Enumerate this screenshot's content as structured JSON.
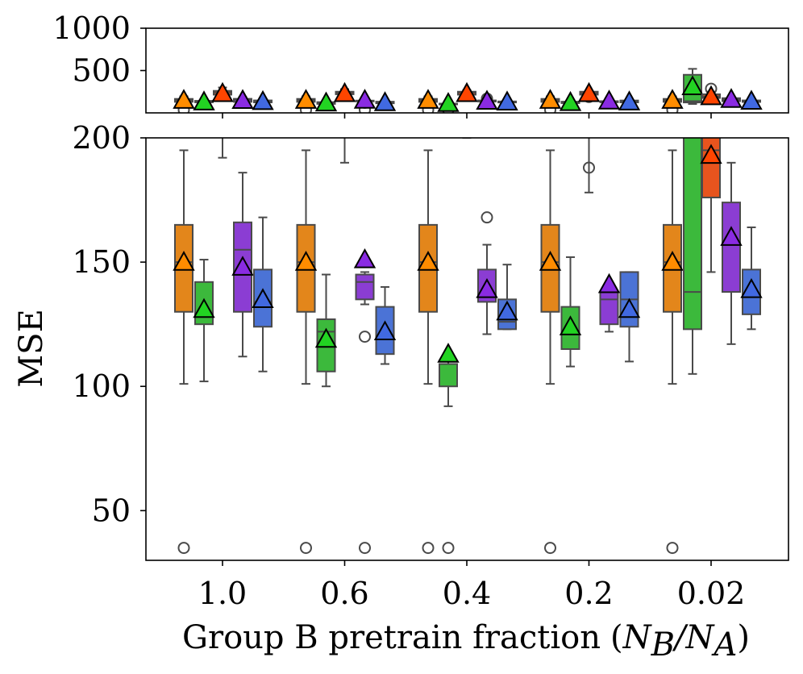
{
  "chart_data": {
    "type": "box",
    "xlabel": "Group B pretrain fraction",
    "xlabel_math": "(N_B/N_A)",
    "ylabel": "MSE",
    "categories": [
      "1.0",
      "0.6",
      "0.4",
      "0.2",
      "0.02"
    ],
    "series": [
      {
        "name": "orange",
        "color": "#e3861b",
        "marker_color": "#ff8c00"
      },
      {
        "name": "green",
        "color": "#3cb93c",
        "marker_color": "#22d322"
      },
      {
        "name": "red",
        "color": "#e7541e",
        "marker_color": "#ff4500"
      },
      {
        "name": "purple",
        "color": "#8b3dd3",
        "marker_color": "#8a2be2"
      },
      {
        "name": "blue",
        "color": "#4b73d6",
        "marker_color": "#4169e1"
      }
    ],
    "panels": {
      "top": {
        "ylim": [
          0,
          1000
        ],
        "yticks": [
          500,
          1000
        ]
      },
      "bottom": {
        "ylim": [
          30,
          200
        ],
        "yticks": [
          50,
          100,
          150,
          200
        ]
      }
    },
    "boxes": [
      {
        "cat": 0,
        "s": 0,
        "wlo": 101,
        "q1": 130,
        "med": 150,
        "q3": 165,
        "whi": 195,
        "mean": 150,
        "fl": [
          35
        ]
      },
      {
        "cat": 0,
        "s": 1,
        "wlo": 102,
        "q1": 125,
        "med": 129,
        "q3": 142,
        "whi": 151,
        "mean": 131,
        "fl": []
      },
      {
        "cat": 0,
        "s": 2,
        "wlo": 192,
        "q1": 215,
        "med": 240,
        "q3": 260,
        "whi": 300,
        "mean": 230,
        "fl": []
      },
      {
        "cat": 0,
        "s": 3,
        "wlo": 112,
        "q1": 130,
        "med": 155,
        "q3": 166,
        "whi": 186,
        "mean": 148,
        "fl": []
      },
      {
        "cat": 0,
        "s": 4,
        "wlo": 106,
        "q1": 124,
        "med": 134,
        "q3": 147,
        "whi": 168,
        "mean": 135,
        "fl": []
      },
      {
        "cat": 1,
        "s": 0,
        "wlo": 101,
        "q1": 130,
        "med": 150,
        "q3": 165,
        "whi": 195,
        "mean": 150,
        "fl": [
          35
        ]
      },
      {
        "cat": 1,
        "s": 1,
        "wlo": 100,
        "q1": 106,
        "med": 122,
        "q3": 127,
        "whi": 145,
        "mean": 119,
        "fl": []
      },
      {
        "cat": 1,
        "s": 2,
        "wlo": 190,
        "q1": 220,
        "med": 240,
        "q3": 250,
        "whi": 280,
        "mean": 230,
        "fl": []
      },
      {
        "cat": 1,
        "s": 3,
        "wlo": 133,
        "q1": 135,
        "med": 142,
        "q3": 145,
        "whi": 146,
        "mean": 151,
        "fl": [
          120,
          35
        ]
      },
      {
        "cat": 1,
        "s": 4,
        "wlo": 109,
        "q1": 113,
        "med": 120,
        "q3": 132,
        "whi": 140,
        "mean": 122,
        "fl": []
      },
      {
        "cat": 2,
        "s": 0,
        "wlo": 101,
        "q1": 130,
        "med": 150,
        "q3": 165,
        "whi": 195,
        "mean": 150,
        "fl": [
          35
        ]
      },
      {
        "cat": 2,
        "s": 1,
        "wlo": 92,
        "q1": 100,
        "med": 109,
        "q3": 109,
        "whi": 111,
        "mean": 113,
        "fl": [
          35
        ]
      },
      {
        "cat": 2,
        "s": 2,
        "wlo": 200,
        "q1": 215,
        "med": 240,
        "q3": 250,
        "whi": 270,
        "mean": 230,
        "fl": []
      },
      {
        "cat": 2,
        "s": 3,
        "wlo": 121,
        "q1": 134,
        "med": 137,
        "q3": 147,
        "whi": 157,
        "mean": 139,
        "fl": [
          168
        ]
      },
      {
        "cat": 2,
        "s": 4,
        "wlo": 123,
        "q1": 123,
        "med": 126,
        "q3": 135,
        "whi": 149,
        "mean": 130,
        "fl": []
      },
      {
        "cat": 3,
        "s": 0,
        "wlo": 101,
        "q1": 130,
        "med": 150,
        "q3": 165,
        "whi": 195,
        "mean": 150,
        "fl": [
          35
        ]
      },
      {
        "cat": 3,
        "s": 1,
        "wlo": 108,
        "q1": 115,
        "med": 122,
        "q3": 132,
        "whi": 152,
        "mean": 124,
        "fl": []
      },
      {
        "cat": 3,
        "s": 2,
        "wlo": 178,
        "q1": 215,
        "med": 230,
        "q3": 250,
        "whi": 260,
        "mean": 230,
        "fl": [
          188
        ]
      },
      {
        "cat": 3,
        "s": 3,
        "wlo": 122,
        "q1": 125,
        "med": 135,
        "q3": 138,
        "whi": 141,
        "mean": 141,
        "fl": []
      },
      {
        "cat": 3,
        "s": 4,
        "wlo": 110,
        "q1": 124,
        "med": 135,
        "q3": 146,
        "whi": 146,
        "mean": 131,
        "fl": []
      },
      {
        "cat": 4,
        "s": 0,
        "wlo": 101,
        "q1": 130,
        "med": 150,
        "q3": 165,
        "whi": 195,
        "mean": 150,
        "fl": [
          35
        ]
      },
      {
        "cat": 4,
        "s": 1,
        "wlo": 105,
        "q1": 123,
        "med": 138,
        "q3": 450,
        "whi": 520,
        "mean": 310,
        "fl": []
      },
      {
        "cat": 4,
        "s": 2,
        "wlo": 146,
        "q1": 176,
        "med": 195,
        "q3": 220,
        "whi": 250,
        "mean": 193,
        "fl": [
          285
        ]
      },
      {
        "cat": 4,
        "s": 3,
        "wlo": 117,
        "q1": 138,
        "med": 157,
        "q3": 174,
        "whi": 190,
        "mean": 160,
        "fl": []
      },
      {
        "cat": 4,
        "s": 4,
        "wlo": 123,
        "q1": 129,
        "med": 137,
        "q3": 147,
        "whi": 164,
        "mean": 139,
        "fl": []
      }
    ]
  }
}
